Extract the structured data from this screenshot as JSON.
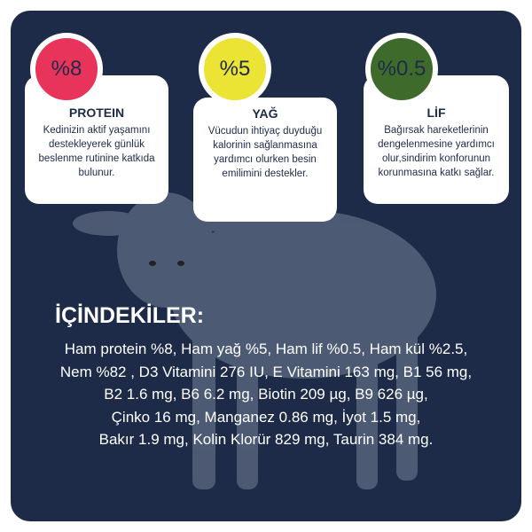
{
  "cards": [
    {
      "badge": "%8",
      "title": "PROTEIN",
      "text": "Kedinizin aktif yaşamını destekleyerek günlük beslenme rutinine katkıda bulunur."
    },
    {
      "badge": "%5",
      "title": "YAĞ",
      "text": "Vücudun ihtiyaç duyduğu kalorinin sağlanmasına yardımcı olurken besin emilimini destekler."
    },
    {
      "badge": "%0.5",
      "title": "LİF",
      "text": "Bağırsak hareketlerinin dengelenmesine yardımcı olur,sindirim konforunun korunmasına katkı sağlar."
    }
  ],
  "ingredients": {
    "title": "İÇİNDEKİLER:",
    "lines": [
      "Ham protein %8, Ham yağ %5, Ham lif %0.5, Ham kül %2.5,",
      "Nem %82 , D3 Vitamini  276 IU, E Vitamini  163 mg, B1 56 mg,",
      "B2 1.6 mg, B6 6.2 mg, Biotin  209 µg, B9  626 µg,",
      "Çinko  16 mg, Manganez  0.86 mg, İyot 1.5 mg,",
      "Bakır  1.9 mg, Kolin Klorür  829 mg, Taurin  384 mg."
    ]
  }
}
